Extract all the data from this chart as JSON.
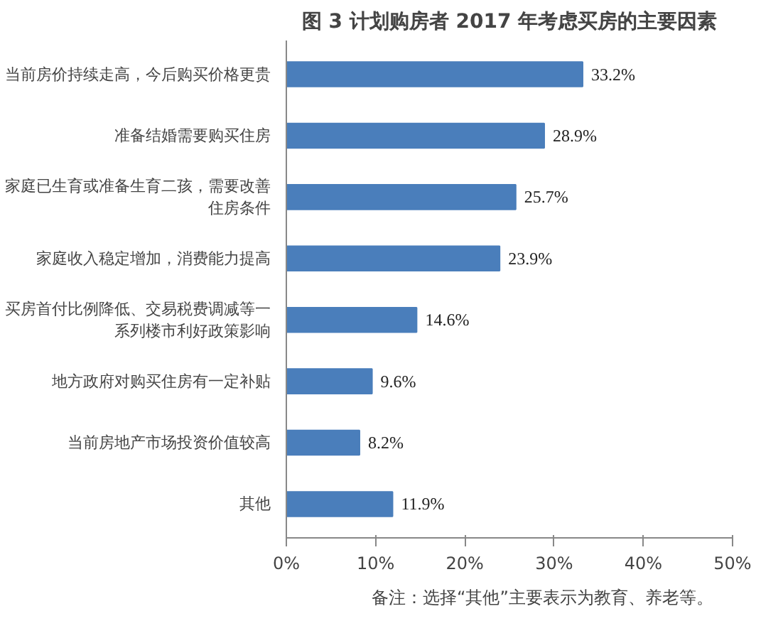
{
  "chart_data": {
    "type": "bar",
    "orientation": "horizontal",
    "title": "图 3 计划购房者 2017 年考虑买房的主要因素",
    "categories": [
      "当前房价持续走高，今后购买价格更贵",
      "准备结婚需要购买住房",
      "家庭已生育或准备生育二孩，需要改善住房条件",
      "家庭收入稳定增加，消费能力提高",
      "买房首付比例降低、交易税费调减等一系列楼市利好政策影响",
      "地方政府对购买住房有一定补贴",
      "当前房地产市场投资价值较高",
      "其他"
    ],
    "values": [
      33.2,
      28.9,
      25.7,
      23.9,
      14.6,
      9.6,
      8.2,
      11.9
    ],
    "value_labels": [
      "33.2%",
      "28.9%",
      "25.7%",
      "23.9%",
      "14.6%",
      "9.6%",
      "8.2%",
      "11.9%"
    ],
    "color": "#4a7ebb",
    "xlim": [
      0,
      50
    ],
    "xticks": [
      {
        "value": 0,
        "label": "0%"
      },
      {
        "value": 10,
        "label": "10%"
      },
      {
        "value": 20,
        "label": "20%"
      },
      {
        "value": 30,
        "label": "30%"
      },
      {
        "value": 40,
        "label": "40%"
      },
      {
        "value": 50,
        "label": "50%"
      }
    ],
    "grid": false,
    "annotations": [
      "备注：选择“其他”主要表示为教育、养老等。"
    ]
  }
}
